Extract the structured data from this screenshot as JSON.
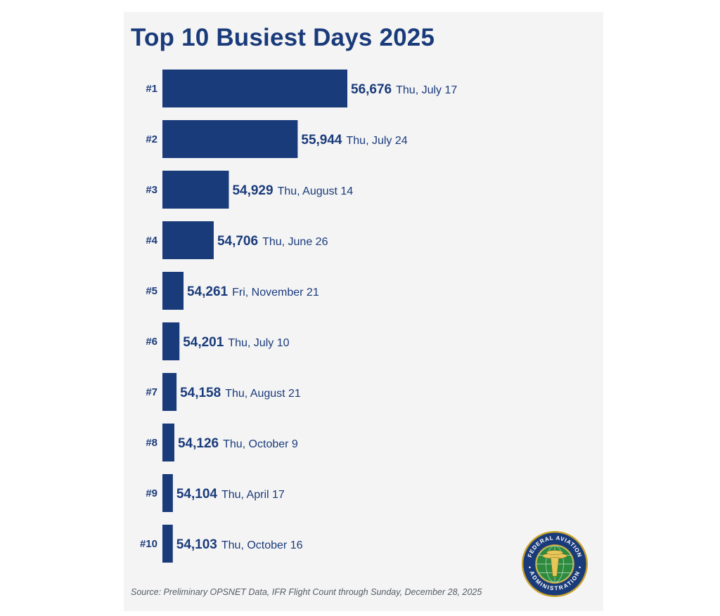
{
  "title": "Top 10 Busiest Days 2025",
  "source": "Source: Preliminary OPSNET Data, IFR Flight Count through Sunday, December 28, 2025",
  "logo_text": "FEDERAL AVIATION ADMINISTRATION",
  "colors": {
    "bar": "#1a3b7a",
    "text": "#1a3b7a",
    "panel": "#f4f4f5"
  },
  "chart_data": {
    "type": "bar",
    "orientation": "horizontal",
    "title": "Top 10 Busiest Days 2025",
    "categories": [
      "#1",
      "#2",
      "#3",
      "#4",
      "#5",
      "#6",
      "#7",
      "#8",
      "#9",
      "#10"
    ],
    "values": [
      56676,
      55944,
      54929,
      54706,
      54261,
      54201,
      54158,
      54126,
      54104,
      54103
    ],
    "value_labels": [
      "56,676",
      "55,944",
      "54,929",
      "54,706",
      "54,261",
      "54,201",
      "54,158",
      "54,126",
      "54,104",
      "54,103"
    ],
    "dates": [
      "Thu, July 17",
      "Thu, July 24",
      "Thu, August 14",
      "Thu, June 26",
      "Fri, November 21",
      "Thu, July 10",
      "Thu, August 21",
      "Thu, October 9",
      "Thu, April 17",
      "Thu, October 16"
    ],
    "xlim": [
      53950,
      56676
    ],
    "grid": false,
    "legend": "none"
  }
}
